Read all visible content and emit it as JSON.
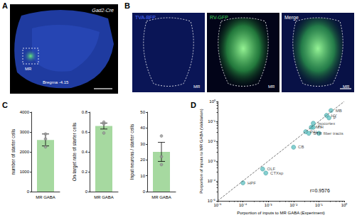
{
  "panels": {
    "A": {
      "label": "A",
      "genotype": "Gad2-Cre",
      "region": "MR",
      "bregma": "Bregma -4.15"
    },
    "B": {
      "label": "B",
      "region": "MR",
      "images": [
        "TVA-BFP",
        "RV-GFP",
        "Merge"
      ]
    },
    "C": {
      "label": "C"
    },
    "D": {
      "label": "D"
    }
  },
  "chart_data": [
    {
      "type": "bar",
      "categories": [
        "MR GABA"
      ],
      "values": [
        2600
      ],
      "errors": [
        300
      ],
      "points": [
        [
          2900,
          2650,
          2250
        ]
      ],
      "y_label": "number of starter cells",
      "ylim": [
        0,
        4000
      ],
      "yticks": [
        0,
        1000,
        2000,
        3000,
        4000
      ],
      "color": "#a6d9a0",
      "grid": false
    },
    {
      "type": "bar",
      "categories": [
        "MR GABA"
      ],
      "values": [
        0.66
      ],
      "errors": [
        0.03
      ],
      "points": [
        [
          0.7,
          0.68,
          0.59
        ]
      ],
      "y_label": "On-target rate of starter cells",
      "ylim": [
        0,
        0.8
      ],
      "yticks": [
        0,
        0.2,
        0.4,
        0.6,
        0.8
      ],
      "color": "#a6d9a0",
      "grid": false
    },
    {
      "type": "bar",
      "categories": [
        "MR GABA"
      ],
      "values": [
        25
      ],
      "errors": [
        6
      ],
      "points": [
        [
          35,
          22,
          17
        ]
      ],
      "y_label": "Input neurons / starter cells",
      "ylim": [
        0,
        50
      ],
      "yticks": [
        0,
        10,
        20,
        30,
        40,
        50
      ],
      "color": "#a6d9a0",
      "grid": false
    },
    {
      "type": "scatter",
      "x": [
        0.3,
        0.2,
        0.25,
        0.06,
        0.05,
        0.06,
        0.03,
        0.04,
        0.1,
        0.01,
        0.0006,
        0.0008,
        0.0001
      ],
      "y": [
        0.35,
        0.2,
        0.15,
        0.08,
        0.05,
        0.05,
        0.03,
        0.025,
        0.025,
        0.005,
        0.0004,
        0.00025,
        8e-05
      ],
      "point_labels": [
        "MB",
        "HY",
        "P",
        "Isocortex",
        "MY",
        "TH",
        "PAL",
        "STR",
        "fiber tracts",
        "CB",
        "OLF",
        "CTXsp",
        "HPF"
      ],
      "x_label": "Porportion of inputs to MR GABA (Experiment)",
      "y_label": "Porportion of inputs to MR GABA (Validation)",
      "xlim": [
        1e-05,
        1
      ],
      "ylim": [
        1e-05,
        1
      ],
      "xticks": [
        {
          "value": 1e-05,
          "label": "10⁻⁵"
        },
        {
          "value": 0.0001,
          "label": "10⁻⁴"
        },
        {
          "value": 0.001,
          "label": "10⁻³"
        },
        {
          "value": 0.01,
          "label": "10⁻²"
        },
        {
          "value": 0.1,
          "label": "10⁻¹"
        },
        {
          "value": 1,
          "label": "10⁰"
        }
      ],
      "yticks": [
        {
          "value": 1e-05,
          "label": "10⁻⁵"
        },
        {
          "value": 0.0001,
          "label": "10⁻⁴"
        },
        {
          "value": 0.001,
          "label": "10⁻³"
        },
        {
          "value": 0.01,
          "label": "10⁻²"
        },
        {
          "value": 0.1,
          "label": "10⁻¹"
        },
        {
          "value": 1,
          "label": "10⁰"
        }
      ],
      "log": true,
      "annotation": "r=0.9576",
      "color": "#5bbfc0",
      "line_style": "dashed",
      "grid": false
    }
  ]
}
